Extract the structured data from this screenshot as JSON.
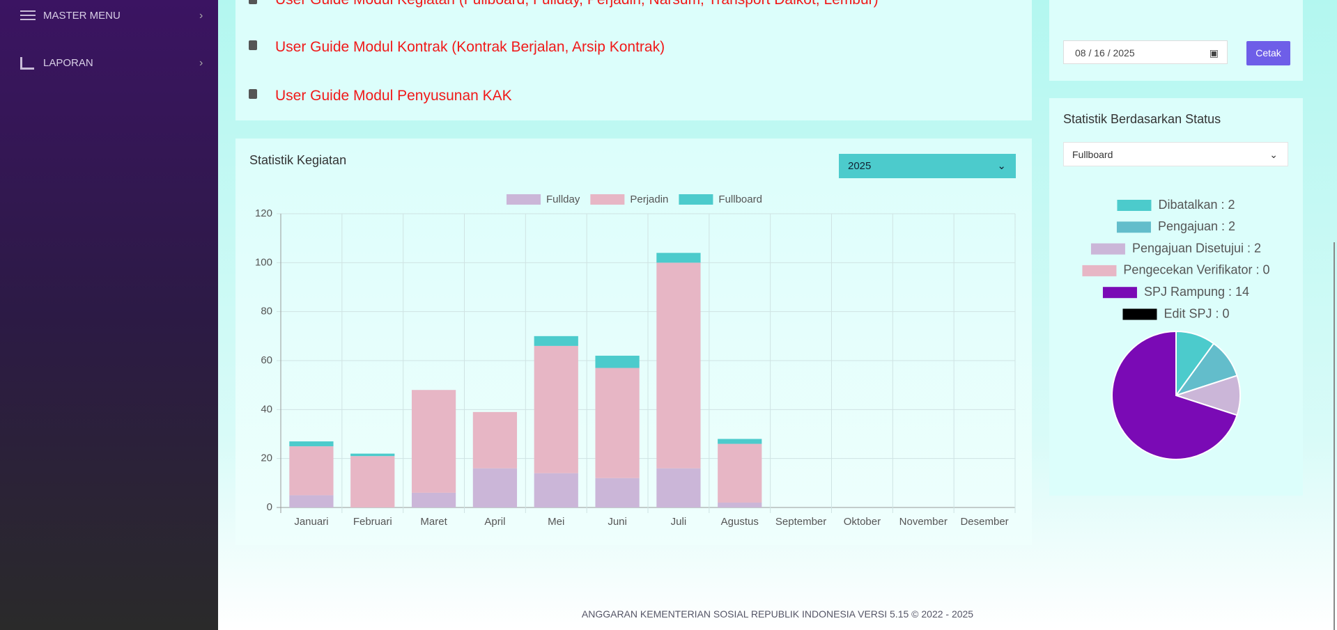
{
  "sidebar": {
    "items": [
      "MASTER MENU",
      "LAPORAN"
    ]
  },
  "guides": [
    "User Guide Modul Kegiatan (Fullboard, Fullday, Perjadin, Narsum, Transport Dalkot, Lembur)",
    "User Guide Modul Kontrak (Kontrak Berjalan, Arsip Kontrak)",
    "User Guide Modul Penyusunan KAK"
  ],
  "year_select": "2025",
  "date_input": "08 / 16 / 2025",
  "print_button": "Cetak",
  "status_select": "Fullboard",
  "footer": "ANGGARAN KEMENTERIAN SOSIAL REPUBLIK INDONESIA VERSI 5.15 © 2022 - 2025",
  "chart_data": [
    {
      "type": "bar",
      "stacked": true,
      "title": "Statistik Kegiatan",
      "categories": [
        "Januari",
        "Februari",
        "Maret",
        "April",
        "Mei",
        "Juni",
        "Juli",
        "Agustus",
        "September",
        "Oktober",
        "November",
        "Desember"
      ],
      "series": [
        {
          "name": "Fullday",
          "color": "#cbb6d8",
          "values": [
            5,
            0,
            6,
            16,
            14,
            12,
            16,
            2,
            0,
            0,
            0,
            0
          ]
        },
        {
          "name": "Perjadin",
          "color": "#e7b6c5",
          "values": [
            20,
            21,
            42,
            23,
            52,
            45,
            84,
            24,
            0,
            0,
            0,
            0
          ]
        },
        {
          "name": "Fullboard",
          "color": "#4ccbcc",
          "values": [
            2,
            1,
            0,
            0,
            4,
            5,
            4,
            2,
            0,
            0,
            0,
            0
          ]
        }
      ],
      "ylim": [
        0,
        120
      ],
      "yticks": [
        0,
        20,
        40,
        60,
        80,
        100,
        120
      ],
      "grid": true
    },
    {
      "type": "pie",
      "title": "Statistik Berdasarkan Status",
      "categories": [
        "Dibatalkan : 2",
        "Pengajuan : 2",
        "Pengajuan Disetujui : 2",
        "Pengecekan Verifikator : 0",
        "SPJ Rampung : 14",
        "Edit SPJ : 0"
      ],
      "values": [
        2,
        2,
        2,
        0,
        14,
        0
      ],
      "colors": [
        "#4ccbcc",
        "#63bdcb",
        "#cbb6d8",
        "#e7b6c5",
        "#7a0ab5",
        "#000000"
      ]
    }
  ]
}
